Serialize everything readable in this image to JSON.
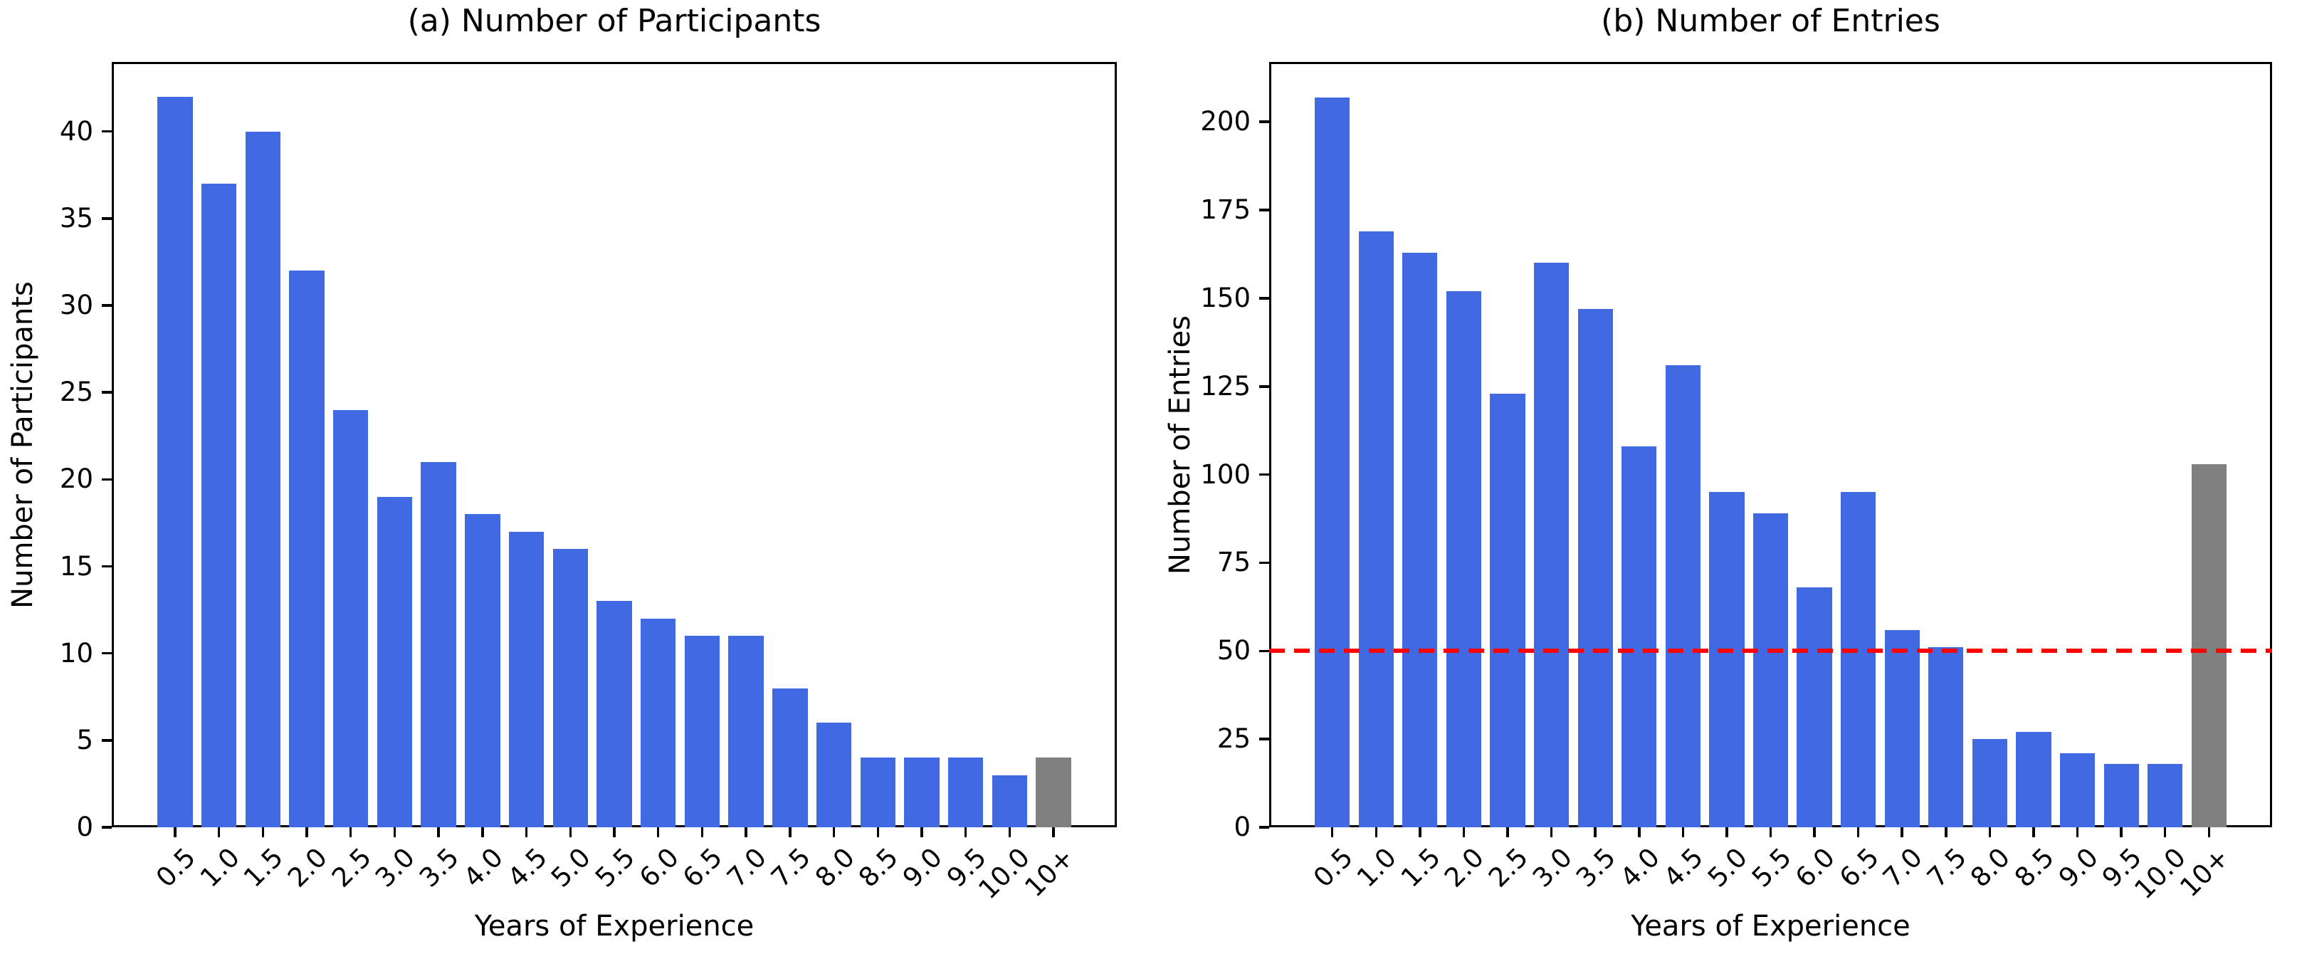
{
  "figure": {
    "background": "#FFFFFF",
    "axis_color": "#000000",
    "text_color": "#000000"
  },
  "chart_data": [
    {
      "type": "bar",
      "panel": "a",
      "title": "(a) Number of Participants",
      "xlabel": "Years of Experience",
      "ylabel": "Number of Participants",
      "categories": [
        "0.5",
        "1.0",
        "1.5",
        "2.0",
        "2.5",
        "3.0",
        "3.5",
        "4.0",
        "4.5",
        "5.0",
        "5.5",
        "6.0",
        "6.5",
        "7.0",
        "7.5",
        "8.0",
        "8.5",
        "9.0",
        "9.5",
        "10.0",
        "10+"
      ],
      "values": [
        42,
        37,
        40,
        32,
        24,
        19,
        21,
        18,
        17,
        16,
        13,
        12,
        11,
        11,
        8,
        6,
        4,
        4,
        4,
        3,
        4
      ],
      "bar_color": "#4169E1",
      "last_bar_color": "#808080",
      "yticks": [
        0,
        5,
        10,
        15,
        20,
        25,
        30,
        35,
        40
      ],
      "ylim": [
        0,
        44
      ],
      "grid": false,
      "legend": null,
      "refline": null
    },
    {
      "type": "bar",
      "panel": "b",
      "title": "(b) Number of Entries",
      "xlabel": "Years of Experience",
      "ylabel": "Number of Entries",
      "categories": [
        "0.5",
        "1.0",
        "1.5",
        "2.0",
        "2.5",
        "3.0",
        "3.5",
        "4.0",
        "4.5",
        "5.0",
        "5.5",
        "6.0",
        "6.5",
        "7.0",
        "7.5",
        "8.0",
        "8.5",
        "9.0",
        "9.5",
        "10.0",
        "10+"
      ],
      "values": [
        207,
        169,
        163,
        152,
        123,
        160,
        147,
        108,
        131,
        95,
        89,
        68,
        95,
        56,
        51,
        25,
        27,
        21,
        18,
        18,
        103
      ],
      "bar_color": "#4169E1",
      "last_bar_color": "#808080",
      "yticks": [
        0,
        25,
        50,
        75,
        100,
        125,
        150,
        175,
        200
      ],
      "ylim": [
        0,
        217
      ],
      "grid": false,
      "legend": null,
      "refline": {
        "value": 50,
        "color": "#FF0000",
        "style": "dashed"
      }
    }
  ]
}
